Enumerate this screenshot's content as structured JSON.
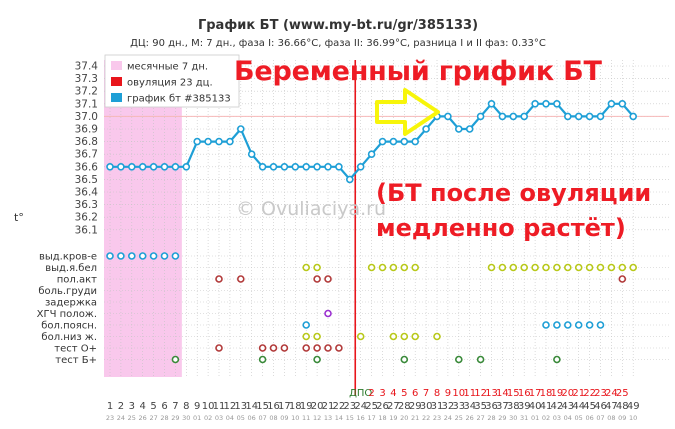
{
  "header": {
    "title": "График БТ (www.my-bt.ru/gr/385133)",
    "subtitle": "ДЦ: 90 дн., М: 7 дн., фаза I: 36.66°C, фаза II: 36.99°C, разница I и II фаз: 0.33°C"
  },
  "annotations": {
    "headline": "Беременный грифик БТ",
    "note_line1": "(БТ после овуляции",
    "note_line2": "медленно растёт)",
    "watermark": "© Ovuliaciya.ru",
    "arrow_color": "#f7f50a"
  },
  "chart_data": {
    "type": "line",
    "ylabel": "t°",
    "ylim": [
      36.0,
      37.4
    ],
    "ymajor_ticks": [
      36.1,
      36.2,
      36.3,
      36.4,
      36.5,
      36.6,
      36.7,
      36.8,
      36.9,
      37.0,
      37.1,
      37.2,
      37.3,
      37.4
    ],
    "reference_line": 37.0,
    "grid": true,
    "legend": {
      "position": "top-left",
      "items": [
        {
          "label": "месячные 7 дн.",
          "color": "#f9c8ec"
        },
        {
          "label": "овуляция 23 дц.",
          "color": "#e8151b"
        },
        {
          "label": "график бт #385133",
          "color": "#1e9fd6"
        }
      ]
    },
    "series": [
      {
        "name": "график бт #385133",
        "color": "#1e9fd6",
        "values": [
          36.6,
          36.6,
          36.6,
          36.6,
          36.6,
          36.6,
          36.6,
          36.6,
          36.8,
          36.8,
          36.8,
          36.8,
          36.9,
          36.7,
          36.6,
          36.6,
          36.6,
          36.6,
          36.6,
          36.6,
          36.6,
          36.6,
          36.5,
          36.6,
          36.7,
          36.8,
          36.8,
          36.8,
          36.8,
          36.9,
          37.0,
          37.0,
          36.9,
          36.9,
          37.0,
          37.1,
          37.0,
          37.0,
          37.0,
          37.1,
          37.1,
          37.1,
          37.0,
          37.0,
          37.0,
          37.0,
          37.1,
          37.1,
          37.0
        ]
      }
    ],
    "cycle_days": [
      "1",
      "2",
      "3",
      "4",
      "5",
      "6",
      "7",
      "8",
      "9",
      "10",
      "11",
      "12",
      "13",
      "14",
      "15",
      "16",
      "17",
      "18",
      "19",
      "20",
      "21",
      "22",
      "23",
      "24",
      "25",
      "26",
      "27",
      "28",
      "29",
      "30",
      "31",
      "32",
      "33",
      "34",
      "35",
      "36",
      "37",
      "38",
      "39",
      "40",
      "41",
      "42",
      "43",
      "44",
      "45",
      "46",
      "47",
      "48",
      "49"
    ],
    "dates": [
      "23",
      "24",
      "25",
      "26",
      "27",
      "28",
      "29",
      "30",
      "01",
      "02",
      "03",
      "04",
      "05",
      "06",
      "07",
      "08",
      "09",
      "10",
      "11",
      "12",
      "13",
      "14",
      "15",
      "16",
      "17",
      "18",
      "19",
      "20",
      "21",
      "22",
      "23",
      "24",
      "25",
      "26",
      "27",
      "28",
      "29",
      "30",
      "31",
      "01",
      "02",
      "03",
      "04",
      "05",
      "06",
      "07",
      "08",
      "09",
      "10"
    ],
    "dpo_label": "ДПО",
    "dpo_start_day": 24,
    "dpo_days": [
      "2",
      "3",
      "4",
      "5",
      "6",
      "7",
      "8",
      "9",
      "10",
      "11",
      "12",
      "13",
      "14",
      "15",
      "16",
      "17",
      "18",
      "19",
      "20",
      "21",
      "22",
      "23",
      "24",
      "25"
    ],
    "menstruation_days": [
      1,
      7
    ],
    "ovulation_day": 23,
    "symptom_rows": [
      {
        "label": "выд.кров-е",
        "color": "#1e9fd6",
        "days": [
          1,
          2,
          3,
          4,
          5,
          6,
          7
        ]
      },
      {
        "label": "выд.я.бел",
        "color": "#b8c81a",
        "days": [
          19,
          20,
          25,
          26,
          27,
          28,
          29,
          36,
          37,
          38,
          39,
          40,
          41,
          42,
          43,
          44,
          45,
          46,
          47,
          48,
          49
        ]
      },
      {
        "label": "пол.акт",
        "color": "#b23a3a",
        "days": [
          11,
          13,
          20,
          21,
          48
        ]
      },
      {
        "label": "боль.груди",
        "color": "#888888",
        "days": []
      },
      {
        "label": "задержка",
        "color": "#888888",
        "days": []
      },
      {
        "label": "ХГЧ полож.",
        "color": "#9b30d0",
        "days": [
          21
        ]
      },
      {
        "label": "бол.поясн.",
        "color": "#1e9fd6",
        "days": [
          19,
          41,
          42,
          43,
          44,
          45,
          46
        ]
      },
      {
        "label": "бол.низ ж.",
        "color": "#b8c81a",
        "days": [
          19,
          20,
          24,
          27,
          28,
          29,
          31
        ]
      },
      {
        "label": "тест О+",
        "color": "#b23a3a",
        "days": [
          11,
          15,
          16,
          17,
          19,
          20,
          21,
          22
        ]
      },
      {
        "label": "тест Б+",
        "color": "#3a8a3a",
        "days": [
          7,
          15,
          20,
          28,
          33,
          35,
          42
        ]
      }
    ]
  }
}
